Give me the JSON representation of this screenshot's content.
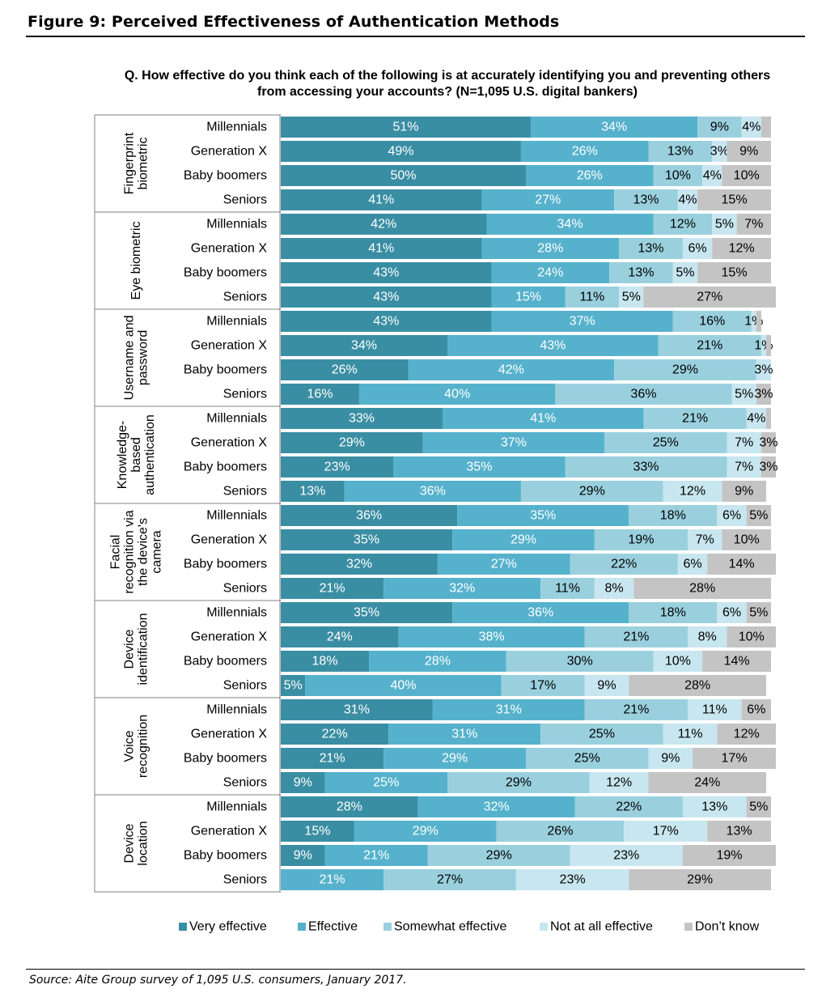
{
  "figure_title": "Figure 9: Perceived Effectiveness of Authentication Methods",
  "question": "Q. How effective do you think each of the following is at accurately identifying you and preventing others from accessing your accounts? (N=1,095 U.S. digital bankers)",
  "source": "Source: Aite Group survey of 1,095 U.S. consumers, January 2017.",
  "chart_data": {
    "type": "bar",
    "orientation": "horizontal",
    "stacked": true,
    "title": "Q. How effective do you think each of the following is at accurately identifying you and preventing others from accessing your accounts? (N=1,095 U.S. digital bankers)",
    "xlim": [
      0,
      100
    ],
    "unit": "%",
    "legend_position": "bottom",
    "series": [
      {
        "name": "Very effective",
        "color": "#3a8ea3"
      },
      {
        "name": "Effective",
        "color": "#56b2cc"
      },
      {
        "name": "Somewhat effective",
        "color": "#9ad0de"
      },
      {
        "name": "Not at all effective",
        "color": "#c8e6ef"
      },
      {
        "name": "Don’t know",
        "color": "#c4c4c4"
      }
    ],
    "groups": [
      {
        "label_lines": [
          "Fingerprint",
          "biometric"
        ],
        "rows": [
          {
            "category": "Millennials",
            "values": [
              51,
              34,
              9,
              4,
              2
            ],
            "labels": [
              "51%",
              "34%",
              "9%",
              "4%",
              ""
            ]
          },
          {
            "category": "Generation X",
            "values": [
              49,
              26,
              13,
              3,
              9
            ],
            "labels": [
              "49%",
              "26%",
              "13%",
              "3%",
              "9%"
            ]
          },
          {
            "category": "Baby boomers",
            "values": [
              50,
              26,
              10,
              4,
              10
            ],
            "labels": [
              "50%",
              "26%",
              "10%",
              "4%",
              "10%"
            ]
          },
          {
            "category": "Seniors",
            "values": [
              41,
              27,
              13,
              4,
              15
            ],
            "labels": [
              "41%",
              "27%",
              "13%",
              "4%",
              "15%"
            ]
          }
        ]
      },
      {
        "label_lines": [
          "Eye biometric"
        ],
        "rows": [
          {
            "category": "Millennials",
            "values": [
              42,
              34,
              12,
              5,
              7
            ],
            "labels": [
              "42%",
              "34%",
              "12%",
              "5%",
              "7%"
            ]
          },
          {
            "category": "Generation X",
            "values": [
              41,
              28,
              13,
              6,
              12
            ],
            "labels": [
              "41%",
              "28%",
              "13%",
              "6%",
              "12%"
            ]
          },
          {
            "category": "Baby boomers",
            "values": [
              43,
              24,
              13,
              5,
              15
            ],
            "labels": [
              "43%",
              "24%",
              "13%",
              "5%",
              "15%"
            ]
          },
          {
            "category": "Seniors",
            "values": [
              43,
              15,
              11,
              5,
              27
            ],
            "labels": [
              "43%",
              "15%",
              "11%",
              "5%",
              "27%"
            ]
          }
        ]
      },
      {
        "label_lines": [
          "Username and",
          "password"
        ],
        "rows": [
          {
            "category": "Millennials",
            "values": [
              43,
              37,
              16,
              1,
              1
            ],
            "labels": [
              "43%",
              "37%",
              "16%",
              "1%",
              ""
            ]
          },
          {
            "category": "Generation X",
            "values": [
              34,
              43,
              21,
              1,
              1
            ],
            "labels": [
              "34%",
              "43%",
              "21%",
              "1%",
              ""
            ]
          },
          {
            "category": "Baby boomers",
            "values": [
              26,
              42,
              29,
              3,
              0
            ],
            "labels": [
              "26%",
              "42%",
              "29%",
              "3%",
              ""
            ]
          },
          {
            "category": "Seniors",
            "values": [
              16,
              40,
              36,
              5,
              3
            ],
            "labels": [
              "16%",
              "40%",
              "36%",
              "5%",
              "3%"
            ]
          }
        ]
      },
      {
        "label_lines": [
          "Knowledge-",
          "based",
          "authentication"
        ],
        "rows": [
          {
            "category": "Millennials",
            "values": [
              33,
              41,
              21,
              4,
              1
            ],
            "labels": [
              "33%",
              "41%",
              "21%",
              "4%",
              ""
            ]
          },
          {
            "category": "Generation X",
            "values": [
              29,
              37,
              25,
              7,
              3
            ],
            "labels": [
              "29%",
              "37%",
              "25%",
              "7%",
              "3%"
            ]
          },
          {
            "category": "Baby boomers",
            "values": [
              23,
              35,
              33,
              7,
              3
            ],
            "labels": [
              "23%",
              "35%",
              "33%",
              "7%",
              "3%"
            ]
          },
          {
            "category": "Seniors",
            "values": [
              13,
              36,
              29,
              12,
              9
            ],
            "labels": [
              "13%",
              "36%",
              "29%",
              "12%",
              "9%"
            ]
          }
        ]
      },
      {
        "label_lines": [
          "Facial",
          "recognition via",
          "the device's",
          "camera"
        ],
        "rows": [
          {
            "category": "Millennials",
            "values": [
              36,
              35,
              18,
              6,
              5
            ],
            "labels": [
              "36%",
              "35%",
              "18%",
              "6%",
              "5%"
            ]
          },
          {
            "category": "Generation X",
            "values": [
              35,
              29,
              19,
              7,
              10
            ],
            "labels": [
              "35%",
              "29%",
              "19%",
              "7%",
              "10%"
            ]
          },
          {
            "category": "Baby boomers",
            "values": [
              32,
              27,
              22,
              6,
              14
            ],
            "labels": [
              "32%",
              "27%",
              "22%",
              "6%",
              "14%"
            ]
          },
          {
            "category": "Seniors",
            "values": [
              21,
              32,
              11,
              8,
              28
            ],
            "labels": [
              "21%",
              "32%",
              "11%",
              "8%",
              "28%"
            ]
          }
        ]
      },
      {
        "label_lines": [
          "Device",
          "identification"
        ],
        "rows": [
          {
            "category": "Millennials",
            "values": [
              35,
              36,
              18,
              6,
              5
            ],
            "labels": [
              "35%",
              "36%",
              "18%",
              "6%",
              "5%"
            ]
          },
          {
            "category": "Generation X",
            "values": [
              24,
              38,
              21,
              8,
              10
            ],
            "labels": [
              "24%",
              "38%",
              "21%",
              "8%",
              "10%"
            ]
          },
          {
            "category": "Baby boomers",
            "values": [
              18,
              28,
              30,
              10,
              14
            ],
            "labels": [
              "18%",
              "28%",
              "30%",
              "10%",
              "14%"
            ]
          },
          {
            "category": "Seniors",
            "values": [
              5,
              40,
              17,
              9,
              28
            ],
            "labels": [
              "5%",
              "40%",
              "17%",
              "9%",
              "28%"
            ]
          }
        ]
      },
      {
        "label_lines": [
          "Voice",
          "recognition"
        ],
        "rows": [
          {
            "category": "Millennials",
            "values": [
              31,
              31,
              21,
              11,
              6
            ],
            "labels": [
              "31%",
              "31%",
              "21%",
              "11%",
              "6%"
            ]
          },
          {
            "category": "Generation X",
            "values": [
              22,
              31,
              25,
              11,
              12
            ],
            "labels": [
              "22%",
              "31%",
              "25%",
              "11%",
              "12%"
            ]
          },
          {
            "category": "Baby boomers",
            "values": [
              21,
              29,
              25,
              9,
              17
            ],
            "labels": [
              "21%",
              "29%",
              "25%",
              "9%",
              "17%"
            ]
          },
          {
            "category": "Seniors",
            "values": [
              9,
              25,
              29,
              12,
              24
            ],
            "labels": [
              "9%",
              "25%",
              "29%",
              "12%",
              "24%"
            ]
          }
        ]
      },
      {
        "label_lines": [
          "Device",
          "location"
        ],
        "rows": [
          {
            "category": "Millennials",
            "values": [
              28,
              32,
              22,
              13,
              5
            ],
            "labels": [
              "28%",
              "32%",
              "22%",
              "13%",
              "5%"
            ]
          },
          {
            "category": "Generation X",
            "values": [
              15,
              29,
              26,
              17,
              13
            ],
            "labels": [
              "15%",
              "29%",
              "26%",
              "17%",
              "13%"
            ]
          },
          {
            "category": "Baby boomers",
            "values": [
              9,
              21,
              29,
              23,
              19
            ],
            "labels": [
              "9%",
              "21%",
              "29%",
              "23%",
              "19%"
            ]
          },
          {
            "category": "Seniors",
            "values": [
              0,
              21,
              27,
              23,
              29
            ],
            "labels": [
              "",
              "21%",
              "27%",
              "23%",
              "29%"
            ]
          }
        ]
      }
    ]
  }
}
